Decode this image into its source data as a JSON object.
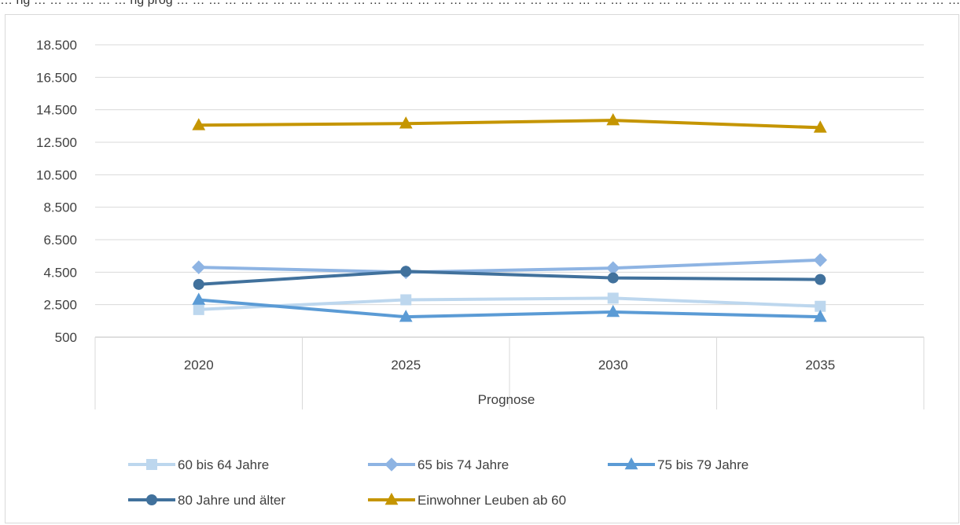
{
  "header": {
    "caption": "… ng … … … … … … ng prog … … … … … … … … … … … … … … … … … … … … … … … … … … … … … … … … … … … … … … … … … … … … … … … … … … … … … … … … … … … … … … … … … … … … … … … … … … … … … … … … … … … … … … … … … … … … … … … … j …"
  },
  "chart_data": {
    "type": "line",
    "title": "",
    "xlabel": "Prognose",
    "ylabel": "",
    "categories": [
      "2020",
      "2025",
      "2030",
      "2035"
    ],
    "y_ticks": [
      "500",
      "2.500",
      "4.500",
      "6.500",
      "8.500",
      "10.500",
      "12.500",
      "14.500",
      "16.500",
      "18.500"
    ],
    "ylim": [
      500,
      18500
    ],
    "grid": true,
    "legend_position": "bottom",
    "series": [
      {
        "name": "60 bis 64 Jahre",
        "values": [
          2200,
          2800,
          2900,
          2400
        ],
        "color": "#bdd7ee",
        "marker": "square"
      },
      {
        "name": "65 bis 74 Jahre",
        "values": [
          4800,
          4500,
          4750,
          5250
        ],
        "color": "#8eb4e3",
        "marker": "diamond"
      },
      {
        "name": "75 bis 79 Jahre",
        "values": [
          2800,
          1750,
          2050,
          1750
        ],
        "color": "#5b9bd5",
        "marker": "triangle"
      },
      {
        "name": "80 Jahre und älter",
        "values": [
          3750,
          4550,
          4150,
          4050
        ],
        "color": "#41719c",
        "marker": "circle"
      },
      {
        "name": "Einwohner Leuben ab 60",
        "values": [
          13550,
          13650,
          13850,
          13400
        ],
        "color": "#c59500",
        "marker": "triangle"
      }
    ]
  }
}
